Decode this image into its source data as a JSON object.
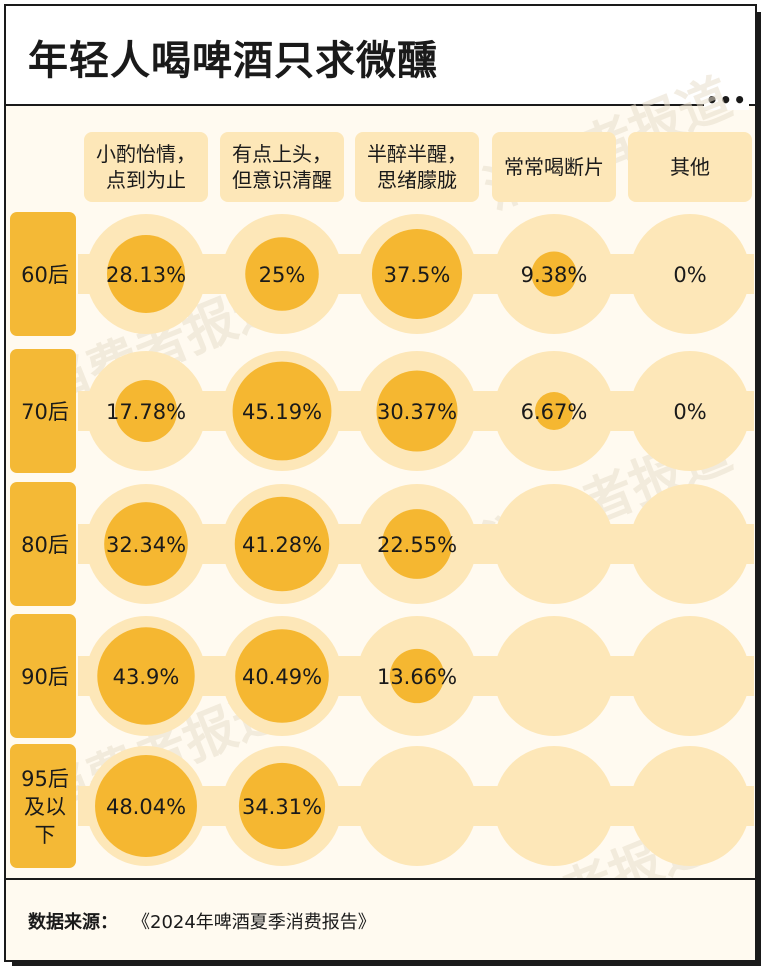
{
  "title": "年轻人喝啤酒只求微醺",
  "menu_icon": "more-dots-icon",
  "source_label": "数据来源：",
  "source_text": "《2024年啤酒夏季消费报告》",
  "watermark": "消费者报道",
  "colors": {
    "bubble_light": "#fde7b8",
    "bubble_dark": "#f5b731",
    "row_label_bg": "#f4b936",
    "band": "#fde7b8",
    "header_cell": "#fde7b8",
    "text": "#1a1a1a"
  },
  "chart_data": {
    "type": "bubble-matrix",
    "title": "年轻人喝啤酒只求微醺",
    "unit": "%",
    "columns": [
      [
        "小酌怡情，",
        "点到为止"
      ],
      [
        "有点上头，",
        "但意识清醒"
      ],
      [
        "半醉半醒，",
        "思绪朦胧"
      ],
      [
        "常常喝断片"
      ],
      [
        "其他"
      ]
    ],
    "rows": [
      {
        "label": [
          "60后"
        ],
        "values": [
          28.13,
          25,
          37.5,
          9.38,
          0
        ],
        "labels": [
          "28.13%",
          "25%",
          "37.5%",
          "9.38%",
          "0%"
        ]
      },
      {
        "label": [
          "70后"
        ],
        "values": [
          17.78,
          45.19,
          30.37,
          6.67,
          0
        ],
        "labels": [
          "17.78%",
          "45.19%",
          "30.37%",
          "6.67%",
          "0%"
        ]
      },
      {
        "label": [
          "80后"
        ],
        "values": [
          32.34,
          41.28,
          22.55,
          null,
          null
        ],
        "labels": [
          "32.34%",
          "41.28%",
          "22.55%",
          "",
          ""
        ]
      },
      {
        "label": [
          "90后"
        ],
        "values": [
          43.9,
          40.49,
          13.66,
          null,
          null
        ],
        "labels": [
          "43.9%",
          "40.49%",
          "13.66%",
          "",
          ""
        ]
      },
      {
        "label": [
          "95后",
          "及以",
          "下"
        ],
        "values": [
          48.04,
          34.31,
          null,
          null,
          null
        ],
        "labels": [
          "48.04%",
          "34.31%",
          "",
          "",
          ""
        ]
      }
    ]
  }
}
